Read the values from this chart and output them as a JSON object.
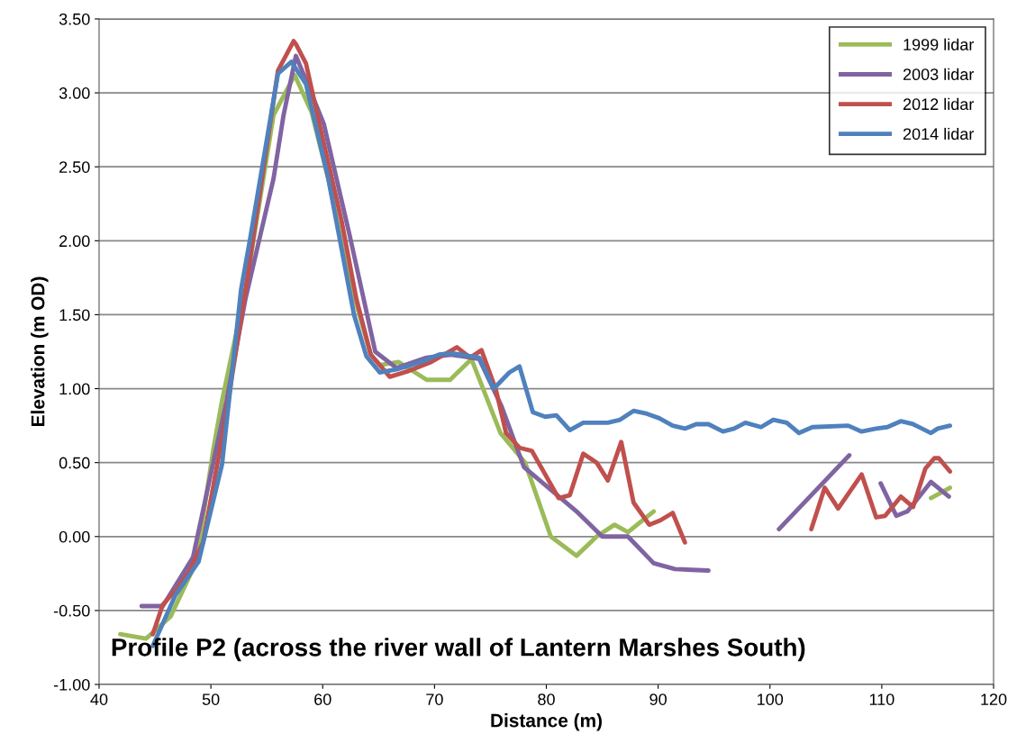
{
  "chart_data": {
    "type": "line",
    "xlabel": "Distance (m)",
    "ylabel": "Elevation (m OD)",
    "annotations": [
      "Profile P2 (across the river wall of Lantern Marshes South)"
    ],
    "xlim": [
      40,
      120
    ],
    "xticks": [
      40,
      50,
      60,
      70,
      80,
      90,
      100,
      110,
      120
    ],
    "ylim": [
      -1.0,
      3.5
    ],
    "yticks": [
      {
        "value": -1.0,
        "label": "-1.00"
      },
      {
        "value": -0.5,
        "label": "-0.50"
      },
      {
        "value": 0.0,
        "label": "0.00"
      },
      {
        "value": 0.5,
        "label": "0.50"
      },
      {
        "value": 1.0,
        "label": "1.00"
      },
      {
        "value": 1.5,
        "label": "1.50"
      },
      {
        "value": 2.0,
        "label": "2.00"
      },
      {
        "value": 2.5,
        "label": "2.50"
      },
      {
        "value": 3.0,
        "label": "3.00"
      },
      {
        "value": 3.5,
        "label": "3.50"
      }
    ],
    "grid": "y",
    "legend": "top right",
    "marker": "none",
    "line_style": "solid",
    "series": [
      {
        "name": "1999 lidar",
        "color": "#9bbb59",
        "x": [
          41.9,
          44.2,
          46.4,
          48.7,
          50.2,
          51.0,
          52.2,
          53.1,
          55.6,
          57.5,
          59.0,
          60.5,
          62.4,
          64.3,
          65.1,
          66.8,
          69.3,
          71.4,
          73.3,
          75.9,
          78.1,
          80.4,
          82.7,
          84.5,
          86.1,
          87.3,
          89.6,
          102,
          114.4,
          116.1
        ],
        "values": [
          -0.66,
          -0.69,
          -0.54,
          -0.17,
          0.58,
          0.92,
          1.35,
          1.67,
          2.85,
          3.12,
          2.87,
          2.42,
          1.73,
          1.23,
          1.16,
          1.18,
          1.06,
          1.06,
          1.2,
          0.7,
          0.5,
          0.0,
          -0.13,
          0.0,
          0.08,
          0.03,
          0.17,
          null,
          0.26,
          0.33
        ]
      },
      {
        "name": "2003 lidar",
        "color": "#8064a2",
        "x": [
          43.8,
          45.7,
          48.4,
          51.4,
          53.1,
          55.6,
          56.5,
          57.6,
          58.6,
          60.1,
          62.4,
          64.7,
          66.6,
          69.3,
          71.5,
          74.0,
          76.0,
          78.0,
          82.7,
          85.0,
          87.3,
          89.6,
          91.5,
          94.5,
          97,
          100.8,
          107.1,
          108.5,
          109.9,
          111.3,
          112.3,
          114.4,
          116.0
        ],
        "values": [
          -0.47,
          -0.47,
          -0.14,
          0.92,
          1.61,
          2.42,
          2.85,
          3.25,
          3.07,
          2.79,
          2.04,
          1.25,
          1.14,
          1.21,
          1.23,
          1.2,
          0.88,
          0.47,
          0.17,
          0.0,
          0.0,
          -0.18,
          -0.22,
          -0.23,
          null,
          0.05,
          0.55,
          null,
          0.36,
          0.14,
          0.17,
          0.37,
          0.27
        ]
      },
      {
        "name": "2012 lidar",
        "color": "#c0504d",
        "x": [
          44.8,
          45.7,
          47.0,
          48.1,
          49.3,
          51.2,
          53.1,
          56.0,
          57.4,
          57.6,
          58.5,
          59.7,
          61.7,
          63.0,
          64.3,
          66.0,
          67.7,
          69.7,
          72.0,
          73.2,
          74.2,
          75.5,
          76.4,
          77.6,
          78.7,
          81.1,
          82.1,
          83.3,
          84.5,
          85.5,
          86.7,
          87.8,
          89.2,
          90.2,
          91.3,
          92.4,
          98,
          103.7,
          104.9,
          106.1,
          108.2,
          109.5,
          110.3,
          111.7,
          112.8,
          113.9,
          114.7,
          115.1,
          116.1
        ],
        "values": [
          -0.66,
          -0.46,
          -0.35,
          -0.23,
          -0.04,
          0.75,
          1.67,
          3.15,
          3.35,
          3.33,
          3.2,
          2.79,
          2.13,
          1.61,
          1.23,
          1.08,
          1.12,
          1.18,
          1.28,
          1.21,
          1.26,
          0.99,
          0.7,
          0.6,
          0.58,
          0.26,
          0.28,
          0.56,
          0.5,
          0.38,
          0.64,
          0.23,
          0.08,
          0.11,
          0.16,
          -0.04,
          null,
          0.05,
          0.33,
          0.19,
          0.42,
          0.13,
          0.14,
          0.27,
          0.2,
          0.46,
          0.53,
          0.53,
          0.44
        ]
      },
      {
        "name": "2014 lidar",
        "color": "#4f81bd",
        "x": [
          44.8,
          46.8,
          48.9,
          51.0,
          52.7,
          53.5,
          56.0,
          57.2,
          58.5,
          60.5,
          62.8,
          63.9,
          65.1,
          66.6,
          68.8,
          70.4,
          71.5,
          74.0,
          75.3,
          76.7,
          77.6,
          78.8,
          79.9,
          80.9,
          82.1,
          83.3,
          85.5,
          86.6,
          87.8,
          89.0,
          90.1,
          91.3,
          92.4,
          93.4,
          94.5,
          95.8,
          96.8,
          97.8,
          99.2,
          100.3,
          101.5,
          102.6,
          103.8,
          107.0,
          108.2,
          109.5,
          110.5,
          111.7,
          112.8,
          114.4,
          115.0,
          116.1
        ],
        "values": [
          -0.74,
          -0.4,
          -0.17,
          0.49,
          1.67,
          2.01,
          3.13,
          3.21,
          3.06,
          2.42,
          1.5,
          1.22,
          1.11,
          1.13,
          1.18,
          1.23,
          1.24,
          1.21,
          1.0,
          1.11,
          1.15,
          0.84,
          0.81,
          0.82,
          0.72,
          0.77,
          0.77,
          0.79,
          0.85,
          0.83,
          0.8,
          0.75,
          0.73,
          0.76,
          0.76,
          0.71,
          0.73,
          0.77,
          0.74,
          0.79,
          0.77,
          0.7,
          0.74,
          0.75,
          0.71,
          0.73,
          0.74,
          0.78,
          0.76,
          0.7,
          0.73,
          0.75
        ]
      }
    ]
  }
}
